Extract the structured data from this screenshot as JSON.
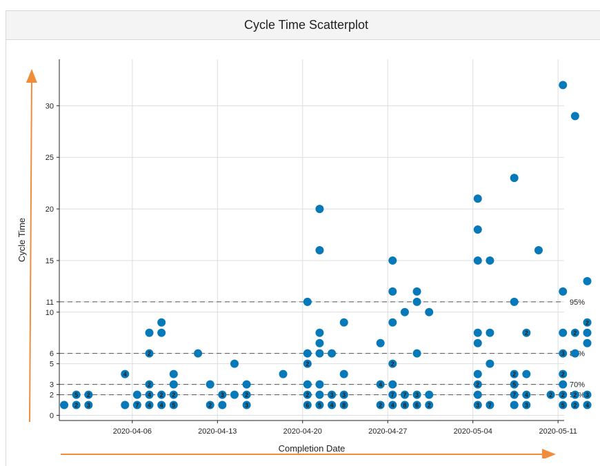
{
  "panel": {
    "title": "Cycle Time Scatterplot"
  },
  "colors": {
    "point": "#0779b8",
    "arrow": "#f08c3a",
    "grid": "#dddddd",
    "percentile_line": "#555555"
  },
  "chart_data": {
    "type": "scatter",
    "title": "Cycle Time Scatterplot",
    "xlabel": "Completion Date",
    "ylabel": "Cycle Time",
    "x_start": "2020-03-31",
    "xlim_days": [
      0,
      41.5
    ],
    "ylim": [
      -0.5,
      34.5
    ],
    "x_ticks": [
      {
        "day": 6,
        "label": "2020-04-06"
      },
      {
        "day": 13,
        "label": "2020-04-13"
      },
      {
        "day": 20,
        "label": "2020-04-20"
      },
      {
        "day": 27,
        "label": "2020-04-27"
      },
      {
        "day": 34,
        "label": "2020-05-04"
      },
      {
        "day": 41,
        "label": "2020-05-11"
      }
    ],
    "y_ticks": [
      0,
      2,
      3,
      5,
      6,
      10,
      11,
      15,
      20,
      25,
      30
    ],
    "percentiles": [
      {
        "label": "50%",
        "value": 2
      },
      {
        "label": "70%",
        "value": 3
      },
      {
        "label": "85%",
        "value": 6
      },
      {
        "label": "95%",
        "value": 11
      }
    ],
    "points": [
      {
        "day": 0.4,
        "y": 1,
        "count": ""
      },
      {
        "day": 1.4,
        "y": 1,
        "count": "2"
      },
      {
        "day": 1.4,
        "y": 2,
        "count": "5"
      },
      {
        "day": 2.4,
        "y": 1,
        "count": "3"
      },
      {
        "day": 2.4,
        "y": 2,
        "count": "2"
      },
      {
        "day": 5.4,
        "y": 1,
        "count": ""
      },
      {
        "day": 5.4,
        "y": 4,
        "count": "4"
      },
      {
        "day": 6.4,
        "y": 1,
        "count": "7"
      },
      {
        "day": 6.4,
        "y": 2,
        "count": ""
      },
      {
        "day": 7.4,
        "y": 1,
        "count": "4"
      },
      {
        "day": 7.4,
        "y": 2,
        "count": "4"
      },
      {
        "day": 7.4,
        "y": 3,
        "count": "2"
      },
      {
        "day": 7.4,
        "y": 6,
        "count": "2"
      },
      {
        "day": 7.4,
        "y": 8,
        "count": ""
      },
      {
        "day": 8.4,
        "y": 1,
        "count": "4"
      },
      {
        "day": 8.4,
        "y": 2,
        "count": "2"
      },
      {
        "day": 8.4,
        "y": 8,
        "count": ""
      },
      {
        "day": 8.4,
        "y": 9,
        "count": ""
      },
      {
        "day": 9.4,
        "y": 1,
        "count": "5"
      },
      {
        "day": 9.4,
        "y": 2,
        "count": "2"
      },
      {
        "day": 9.4,
        "y": 3,
        "count": ""
      },
      {
        "day": 9.4,
        "y": 4,
        "count": ""
      },
      {
        "day": 11.4,
        "y": 6,
        "count": ""
      },
      {
        "day": 12.4,
        "y": 1,
        "count": "2"
      },
      {
        "day": 12.4,
        "y": 3,
        "count": ""
      },
      {
        "day": 13.4,
        "y": 1,
        "count": ""
      },
      {
        "day": 13.4,
        "y": 2,
        "count": "3"
      },
      {
        "day": 14.4,
        "y": 2,
        "count": ""
      },
      {
        "day": 14.4,
        "y": 5,
        "count": ""
      },
      {
        "day": 15.4,
        "y": 1,
        "count": "3"
      },
      {
        "day": 15.4,
        "y": 2,
        "count": "2"
      },
      {
        "day": 15.4,
        "y": 3,
        "count": ""
      },
      {
        "day": 18.4,
        "y": 4,
        "count": ""
      },
      {
        "day": 20.4,
        "y": 1,
        "count": "6"
      },
      {
        "day": 20.4,
        "y": 2,
        "count": "2"
      },
      {
        "day": 20.4,
        "y": 3,
        "count": ""
      },
      {
        "day": 20.4,
        "y": 5,
        "count": "2"
      },
      {
        "day": 20.4,
        "y": 6,
        "count": ""
      },
      {
        "day": 20.4,
        "y": 11,
        "count": ""
      },
      {
        "day": 21.4,
        "y": 1,
        "count": "5"
      },
      {
        "day": 21.4,
        "y": 2,
        "count": ""
      },
      {
        "day": 21.4,
        "y": 3,
        "count": ""
      },
      {
        "day": 21.4,
        "y": 6,
        "count": ""
      },
      {
        "day": 21.4,
        "y": 7,
        "count": ""
      },
      {
        "day": 21.4,
        "y": 8,
        "count": ""
      },
      {
        "day": 21.4,
        "y": 16,
        "count": ""
      },
      {
        "day": 21.4,
        "y": 20,
        "count": ""
      },
      {
        "day": 22.4,
        "y": 1,
        "count": "4"
      },
      {
        "day": 22.4,
        "y": 2,
        "count": "3"
      },
      {
        "day": 22.4,
        "y": 6,
        "count": ""
      },
      {
        "day": 23.4,
        "y": 1,
        "count": "8"
      },
      {
        "day": 23.4,
        "y": 2,
        "count": "3"
      },
      {
        "day": 23.4,
        "y": 4,
        "count": ""
      },
      {
        "day": 23.4,
        "y": 9,
        "count": ""
      },
      {
        "day": 26.4,
        "y": 1,
        "count": "2"
      },
      {
        "day": 26.4,
        "y": 3,
        "count": "4"
      },
      {
        "day": 26.4,
        "y": 7,
        "count": ""
      },
      {
        "day": 27.4,
        "y": 1,
        "count": "4"
      },
      {
        "day": 27.4,
        "y": 2,
        "count": "7"
      },
      {
        "day": 27.4,
        "y": 3,
        "count": ""
      },
      {
        "day": 27.4,
        "y": 5,
        "count": "2"
      },
      {
        "day": 27.4,
        "y": 9,
        "count": ""
      },
      {
        "day": 27.4,
        "y": 12,
        "count": ""
      },
      {
        "day": 27.4,
        "y": 15,
        "count": ""
      },
      {
        "day": 28.4,
        "y": 1,
        "count": "8"
      },
      {
        "day": 28.4,
        "y": 2,
        "count": "7"
      },
      {
        "day": 28.4,
        "y": 10,
        "count": ""
      },
      {
        "day": 29.4,
        "y": 1,
        "count": "6"
      },
      {
        "day": 29.4,
        "y": 2,
        "count": "3"
      },
      {
        "day": 29.4,
        "y": 6,
        "count": ""
      },
      {
        "day": 29.4,
        "y": 11,
        "count": ""
      },
      {
        "day": 29.4,
        "y": 12,
        "count": ""
      },
      {
        "day": 30.4,
        "y": 1,
        "count": "2"
      },
      {
        "day": 30.4,
        "y": 2,
        "count": ""
      },
      {
        "day": 30.4,
        "y": 10,
        "count": ""
      },
      {
        "day": 34.4,
        "y": 1,
        "count": "3"
      },
      {
        "day": 34.4,
        "y": 2,
        "count": ""
      },
      {
        "day": 34.4,
        "y": 3,
        "count": "2"
      },
      {
        "day": 34.4,
        "y": 4,
        "count": ""
      },
      {
        "day": 34.4,
        "y": 7,
        "count": ""
      },
      {
        "day": 34.4,
        "y": 8,
        "count": ""
      },
      {
        "day": 34.4,
        "y": 15,
        "count": ""
      },
      {
        "day": 34.4,
        "y": 18,
        "count": ""
      },
      {
        "day": 34.4,
        "y": 21,
        "count": ""
      },
      {
        "day": 35.4,
        "y": 1,
        "count": "7"
      },
      {
        "day": 35.4,
        "y": 5,
        "count": ""
      },
      {
        "day": 35.4,
        "y": 8,
        "count": ""
      },
      {
        "day": 35.4,
        "y": 15,
        "count": ""
      },
      {
        "day": 37.4,
        "y": 1,
        "count": ""
      },
      {
        "day": 37.4,
        "y": 2,
        "count": "7"
      },
      {
        "day": 37.4,
        "y": 3,
        "count": "5"
      },
      {
        "day": 37.4,
        "y": 4,
        "count": "2"
      },
      {
        "day": 37.4,
        "y": 11,
        "count": ""
      },
      {
        "day": 37.4,
        "y": 23,
        "count": ""
      },
      {
        "day": 38.4,
        "y": 1,
        "count": "3"
      },
      {
        "day": 38.4,
        "y": 2,
        "count": "4"
      },
      {
        "day": 38.4,
        "y": 4,
        "count": ""
      },
      {
        "day": 38.4,
        "y": 8,
        "count": "2"
      },
      {
        "day": 39.4,
        "y": 16,
        "count": ""
      },
      {
        "day": 40.4,
        "y": 2,
        "count": "2"
      },
      {
        "day": 41.4,
        "y": 1,
        "count": "5"
      },
      {
        "day": 41.4,
        "y": 2,
        "count": "2"
      },
      {
        "day": 41.4,
        "y": 3,
        "count": ""
      },
      {
        "day": 41.4,
        "y": 4,
        "count": "2"
      },
      {
        "day": 41.4,
        "y": 6,
        "count": "3"
      },
      {
        "day": 41.4,
        "y": 8,
        "count": ""
      },
      {
        "day": 41.4,
        "y": 12,
        "count": ""
      },
      {
        "day": 41.4,
        "y": 32,
        "count": ""
      },
      {
        "day": 42.4,
        "y": 1,
        "count": "2"
      },
      {
        "day": 42.4,
        "y": 2,
        "count": "2"
      },
      {
        "day": 42.4,
        "y": 6,
        "count": ""
      },
      {
        "day": 42.4,
        "y": 8,
        "count": "2"
      },
      {
        "day": 42.4,
        "y": 29,
        "count": ""
      },
      {
        "day": 43.4,
        "y": 1,
        "count": "4"
      },
      {
        "day": 43.4,
        "y": 2,
        "count": "3"
      },
      {
        "day": 43.4,
        "y": 7,
        "count": ""
      },
      {
        "day": 43.4,
        "y": 8,
        "count": ""
      },
      {
        "day": 43.4,
        "y": 9,
        "count": "2"
      },
      {
        "day": 43.4,
        "y": 13,
        "count": ""
      }
    ]
  }
}
